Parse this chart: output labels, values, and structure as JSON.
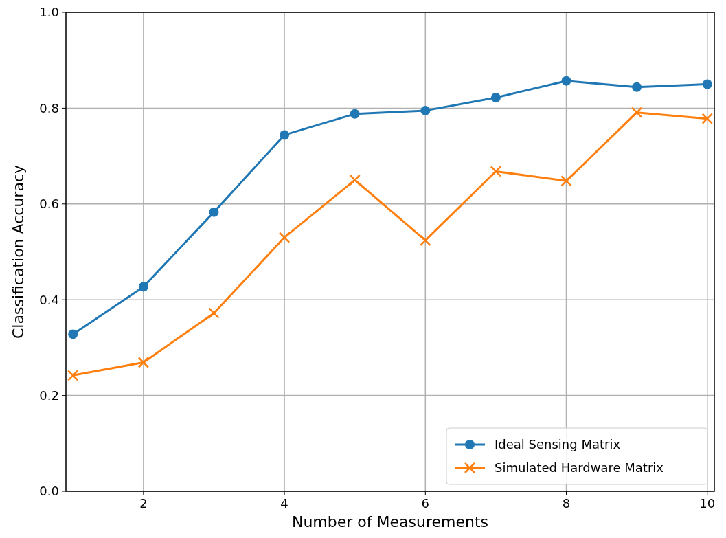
{
  "chart_data": {
    "type": "line",
    "xlabel": "Number of Measurements",
    "ylabel": "Classification Accuracy",
    "x": [
      1,
      2,
      3,
      4,
      5,
      6,
      7,
      8,
      9,
      10
    ],
    "series": [
      {
        "name": "Ideal Sensing Matrix",
        "color": "#1f77b4",
        "marker": "circle",
        "values": [
          0.328,
          0.427,
          0.583,
          0.744,
          0.788,
          0.795,
          0.822,
          0.857,
          0.844,
          0.85
        ]
      },
      {
        "name": "Simulated Hardware Matrix",
        "color": "#ff7f0e",
        "marker": "cross",
        "values": [
          0.242,
          0.269,
          0.372,
          0.53,
          0.65,
          0.524,
          0.668,
          0.648,
          0.791,
          0.778
        ]
      }
    ],
    "xlim": [
      0.9,
      10.1
    ],
    "xticks": [
      2,
      4,
      6,
      8,
      10
    ],
    "ylim": [
      0,
      1
    ],
    "yticks": [
      {
        "value": 0,
        "label": "0.0"
      },
      {
        "value": 0.2,
        "label": "0.2"
      },
      {
        "value": 0.4,
        "label": "0.4"
      },
      {
        "value": 0.6,
        "label": "0.6"
      },
      {
        "value": 0.8,
        "label": "0.8"
      },
      {
        "value": 1,
        "label": "1.0"
      }
    ],
    "grid": true,
    "legend": "bottom right",
    "line_style": "solid"
  }
}
